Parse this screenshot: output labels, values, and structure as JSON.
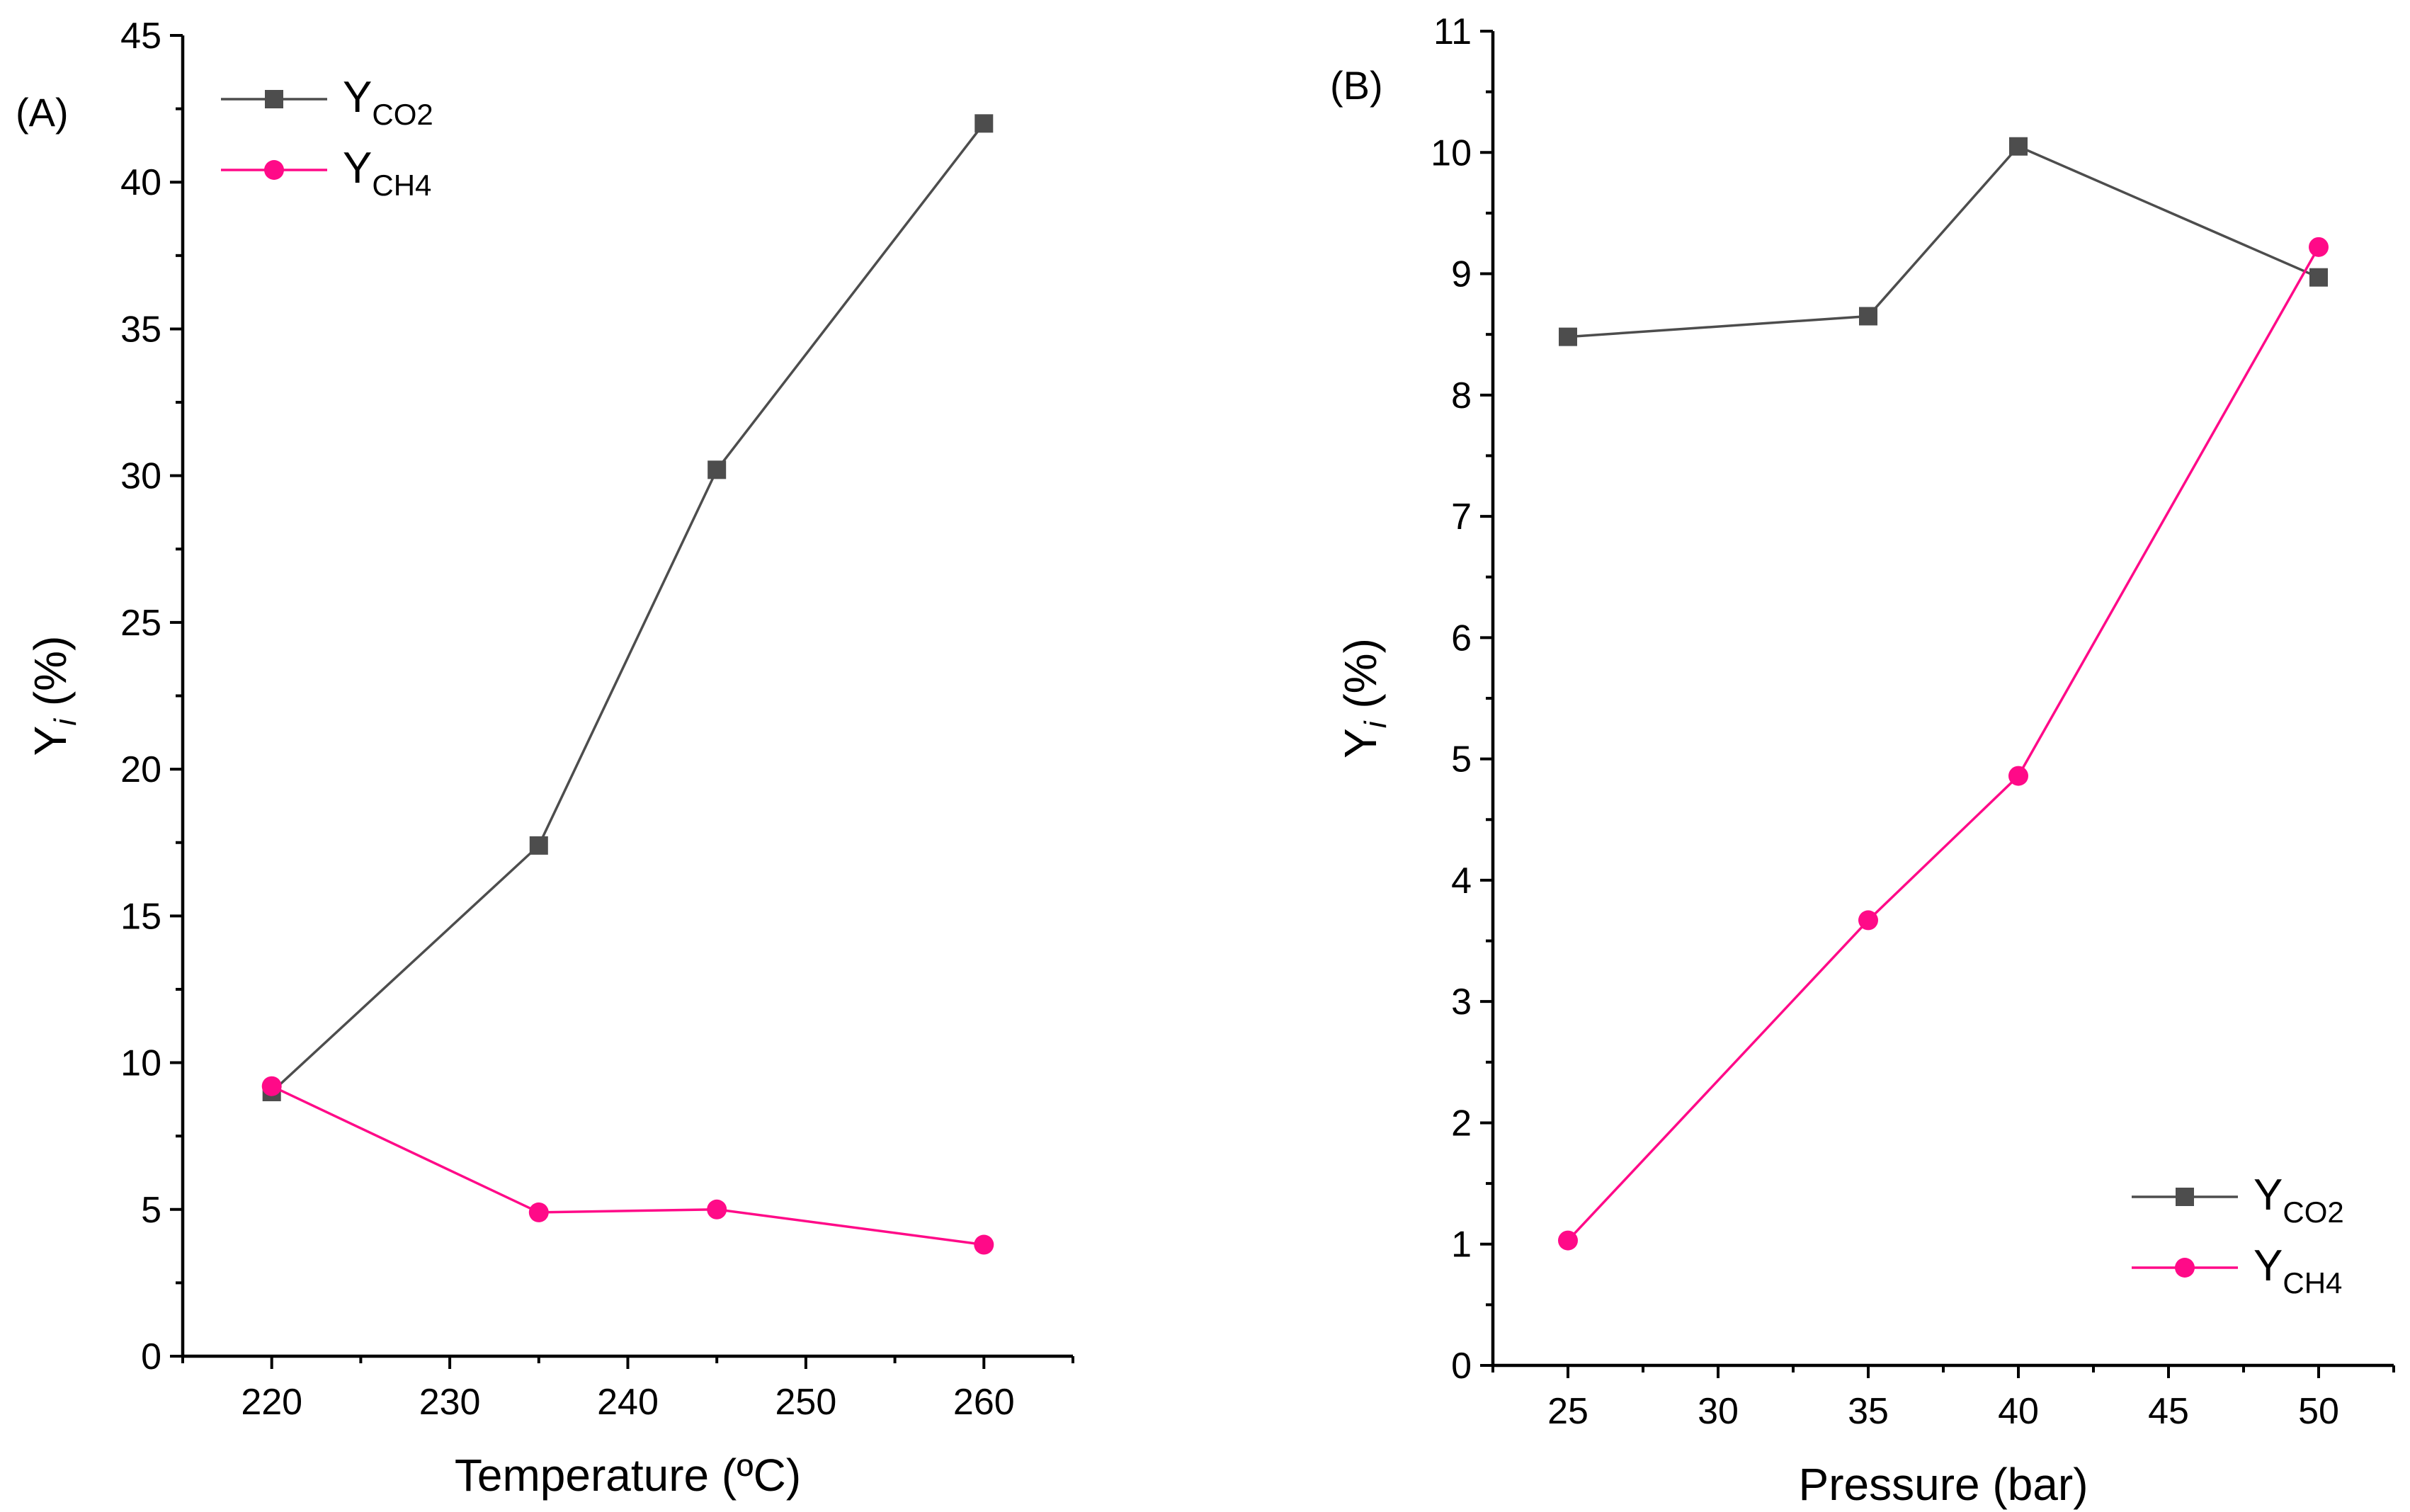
{
  "chart_data": [
    {
      "panel_label": "(A)",
      "type": "line",
      "xlabel": "Temperature (ºC)",
      "ylabel_main": "Y",
      "ylabel_sub": "i",
      "ylabel_suffix": " (%)",
      "xlim": [
        215,
        265
      ],
      "ylim": [
        0,
        45
      ],
      "xticks": [
        220,
        230,
        240,
        250,
        260
      ],
      "yticks": [
        0,
        5,
        10,
        15,
        20,
        25,
        30,
        35,
        40,
        45
      ],
      "legend_position": "top-left",
      "series": [
        {
          "name_main": "Y",
          "name_sub": "CO2",
          "marker": "square",
          "color": "#4d4d4d",
          "x": [
            220,
            235,
            245,
            260
          ],
          "y": [
            9.0,
            17.4,
            30.2,
            42.0
          ]
        },
        {
          "name_main": "Y",
          "name_sub": "CH4",
          "marker": "circle",
          "color": "#ff0a88",
          "x": [
            220,
            235,
            245,
            260
          ],
          "y": [
            9.2,
            4.9,
            5.0,
            3.8
          ]
        }
      ]
    },
    {
      "panel_label": "(B)",
      "type": "line",
      "xlabel": "Pressure (bar)",
      "ylabel_main": "Y",
      "ylabel_sub": "i",
      "ylabel_suffix": " (%)",
      "xlim": [
        22.5,
        52.5
      ],
      "ylim": [
        0,
        11
      ],
      "xticks": [
        25,
        30,
        35,
        40,
        45,
        50
      ],
      "yticks": [
        0,
        1,
        2,
        3,
        4,
        5,
        6,
        7,
        8,
        9,
        10,
        11
      ],
      "legend_position": "bottom-right",
      "series": [
        {
          "name_main": "Y",
          "name_sub": "CO2",
          "marker": "square",
          "color": "#4d4d4d",
          "x": [
            25,
            35,
            40,
            50
          ],
          "y": [
            8.48,
            8.65,
            10.05,
            8.97
          ]
        },
        {
          "name_main": "Y",
          "name_sub": "CH4",
          "marker": "circle",
          "color": "#ff0a88",
          "x": [
            25,
            35,
            40,
            50
          ],
          "y": [
            1.03,
            3.67,
            4.86,
            9.22
          ]
        }
      ]
    }
  ]
}
